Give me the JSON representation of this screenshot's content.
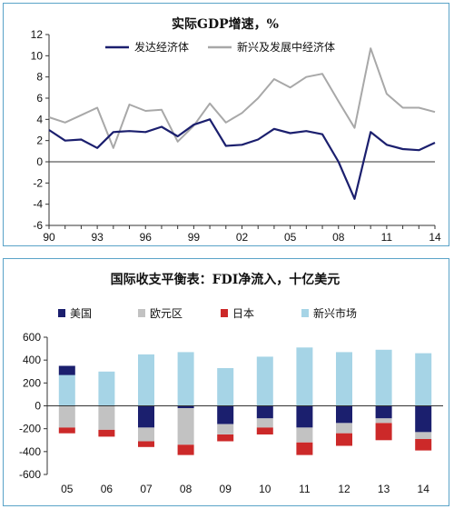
{
  "chart_data": [
    {
      "type": "line",
      "title": "实际GDP增速，%",
      "x": [
        1990,
        1991,
        1992,
        1993,
        1994,
        1995,
        1996,
        1997,
        1998,
        1999,
        2000,
        2001,
        2002,
        2003,
        2004,
        2005,
        2006,
        2007,
        2008,
        2009,
        2010,
        2011,
        2012,
        2013,
        2014
      ],
      "xtick_labels": [
        "90",
        "93",
        "96",
        "99",
        "02",
        "05",
        "08",
        "11",
        "14"
      ],
      "xtick_values": [
        1990,
        1993,
        1996,
        1999,
        2002,
        2005,
        2008,
        2011,
        2014
      ],
      "ylim": [
        -6,
        12
      ],
      "yticks": [
        -6,
        -4,
        -2,
        0,
        2,
        4,
        6,
        8,
        10,
        12
      ],
      "legend_position": "top-center",
      "series": [
        {
          "name": "发达经济体",
          "color": "#1b1f6e",
          "values": [
            3.0,
            2.0,
            2.1,
            1.3,
            2.8,
            2.9,
            2.8,
            3.3,
            2.4,
            3.5,
            4.0,
            1.5,
            1.6,
            2.1,
            3.1,
            2.7,
            2.9,
            2.6,
            0.0,
            -3.5,
            2.8,
            1.6,
            1.2,
            1.1,
            1.8
          ]
        },
        {
          "name": "新兴及发展中经济体",
          "color": "#a8a8a8",
          "values": [
            4.2,
            3.7,
            4.4,
            5.1,
            1.3,
            5.4,
            4.8,
            4.9,
            1.9,
            3.4,
            5.5,
            3.7,
            4.6,
            6.0,
            7.8,
            7.0,
            8.0,
            8.3,
            5.7,
            3.2,
            10.7,
            6.4,
            5.1,
            5.1,
            4.7
          ]
        }
      ]
    },
    {
      "type": "bar",
      "stacked": true,
      "title": "国际收支平衡表：FDI净流入，十亿美元",
      "categories": [
        "05",
        "06",
        "07",
        "08",
        "09",
        "10",
        "11",
        "12",
        "13",
        "14"
      ],
      "ylim": [
        -600,
        600
      ],
      "yticks": [
        -600,
        -400,
        -200,
        0,
        200,
        400,
        600
      ],
      "legend_position": "top",
      "series": [
        {
          "name": "美国",
          "color": "#1b1f6e",
          "values": [
            80,
            0,
            -190,
            -20,
            -160,
            -110,
            -190,
            -150,
            -110,
            -230
          ]
        },
        {
          "name": "欧元区",
          "color": "#c2c2c2",
          "values": [
            -190,
            -210,
            -120,
            -320,
            -90,
            -80,
            -130,
            -90,
            -40,
            -60
          ]
        },
        {
          "name": "日本",
          "color": "#cc2929",
          "values": [
            -50,
            -60,
            -50,
            -90,
            -60,
            -60,
            -110,
            -110,
            -150,
            -100
          ]
        },
        {
          "name": "新兴市场",
          "color": "#a6d4e6",
          "values": [
            270,
            300,
            450,
            470,
            330,
            430,
            510,
            470,
            490,
            460
          ]
        }
      ]
    }
  ]
}
